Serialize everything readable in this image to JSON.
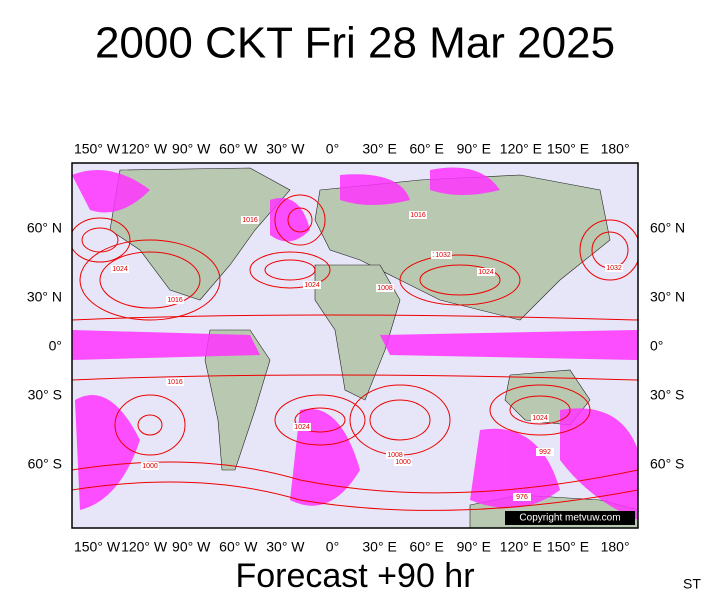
{
  "header": {
    "title": "2000 CKT Fri 28 Mar 2025"
  },
  "map": {
    "longitude_labels": [
      "150° W",
      "120° W",
      "90° W",
      "60° W",
      "30° W",
      "0°",
      "30° E",
      "60° E",
      "90° E",
      "120° E",
      "150° E",
      "180°"
    ],
    "latitude_labels": [
      "60° N",
      "30° N",
      "0°",
      "30° S",
      "60° S"
    ],
    "pressure_labels": [
      "1016",
      "1024",
      "1008",
      "1016",
      "1032",
      "1024",
      "1008",
      "1024",
      "1016",
      "1024",
      "1000",
      "1008",
      "1000",
      "992",
      "976",
      "1032",
      "1016",
      "1024"
    ],
    "copyright": "Copyright metvuw.com"
  },
  "footer": {
    "forecast": "Forecast +90 hr",
    "corner": "ST"
  }
}
